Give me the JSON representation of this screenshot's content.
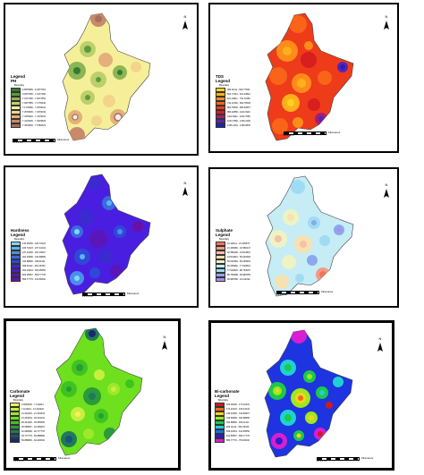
{
  "panels": [
    {
      "id": "ph",
      "title": "Legend",
      "subtitle": "PH",
      "legend_sub": "Boundary",
      "colors": {
        "base": "#f6ef9a",
        "outline": "#444444"
      },
      "rows": [
        {
          "color": "#2f7d32",
          "label": "6.8576669 - 6.9377064"
        },
        {
          "color": "#5c9b3d",
          "label": "6.9377065 - 7.0177459"
        },
        {
          "color": "#8db554",
          "label": "7.0177460 - 7.0977854"
        },
        {
          "color": "#bcd06a",
          "label": "7.0977855 - 7.1778249"
        },
        {
          "color": "#f6ef9a",
          "label": "7.1778250 - 7.2578644"
        },
        {
          "color": "#f2d48a",
          "label": "7.2578645 - 7.3379039"
        },
        {
          "color": "#e4b07a",
          "label": "7.3379040 - 7.4179434"
        },
        {
          "color": "#c98a6a",
          "label": "7.4179435 - 7.4979829"
        },
        {
          "color": "#a5705e",
          "label": "7.4979830 - 7.5780224"
        }
      ]
    },
    {
      "id": "tds",
      "title": "TDS",
      "subtitle": "Legend",
      "legend_sub": "Boundary",
      "colors": {
        "base": "#ee3b1a",
        "outline": "#444444"
      },
      "rows": [
        {
          "color": "#ffd21f",
          "label": "380.11111 - 500.77460"
        },
        {
          "color": "#ffb01c",
          "label": "500.77461 - 621.43810"
        },
        {
          "color": "#ff8c1a",
          "label": "621.43811 - 742.10159"
        },
        {
          "color": "#f96418",
          "label": "742.10160 - 862.76508"
        },
        {
          "color": "#ee3b1a",
          "label": "862.76509 - 983.42857"
        },
        {
          "color": "#d81e1e",
          "label": "983.42858 - 1104.0920"
        },
        {
          "color": "#a21e78",
          "label": "1104.0921 - 1224.7555"
        },
        {
          "color": "#5a24b0",
          "label": "1224.7556 - 1345.4190"
        },
        {
          "color": "#2020c0",
          "label": "1345.4191 - 1466.0825"
        }
      ]
    },
    {
      "id": "hardness",
      "title": "Hardness",
      "subtitle": "Legend",
      "legend_sub": "Boundary",
      "colors": {
        "base": "#4a1ee0",
        "outline": "#444444"
      },
      "rows": [
        {
          "color": "#7fd6ff",
          "label": "130.00000 - 183.72222"
        },
        {
          "color": "#5fb4f4",
          "label": "183.72223 - 237.44444"
        },
        {
          "color": "#4a8fea",
          "label": "237.44445 - 291.16667"
        },
        {
          "color": "#3a6ae0",
          "label": "291.16668 - 344.88889"
        },
        {
          "color": "#2f48d8",
          "label": "344.88890 - 398.61111"
        },
        {
          "color": "#3a2ad0",
          "label": "398.61112 - 452.33333"
        },
        {
          "color": "#4a1ec8",
          "label": "452.33334 - 506.05556"
        },
        {
          "color": "#5a16b8",
          "label": "506.05557 - 559.77778"
        },
        {
          "color": "#6a10a4",
          "label": "559.77779 - 613.50000"
        }
      ]
    },
    {
      "id": "sulphate",
      "title": "Sulphate",
      "subtitle": "Legend",
      "legend_sub": "Boundary",
      "colors": {
        "base": "#c6ecf6",
        "outline": "#444444"
      },
      "rows": [
        {
          "color": "#f2745a",
          "label": "10.111111 - 21.345679"
        },
        {
          "color": "#f49a84",
          "label": "21.345680 - 32.580247"
        },
        {
          "color": "#f7c0aa",
          "label": "32.580248 - 43.814815"
        },
        {
          "color": "#f6e2b0",
          "label": "43.814816 - 55.049383"
        },
        {
          "color": "#eef3c4",
          "label": "55.049384 - 66.283951"
        },
        {
          "color": "#c6ecf6",
          "label": "66.283952 - 77.518519"
        },
        {
          "color": "#9fdcf3",
          "label": "77.518520 - 88.753087"
        },
        {
          "color": "#8aa8ee",
          "label": "88.753088 - 99.987655"
        },
        {
          "color": "#b48ae6",
          "label": "99.987656 - 111.22222"
        }
      ]
    },
    {
      "id": "carbonate",
      "title": "Carbonate",
      "subtitle": "Legend",
      "legend_sub": "Boundary",
      "colors": {
        "base": "#6ee01e",
        "outline": "#444444"
      },
      "rows": [
        {
          "color": "#f2f25a",
          "label": "0.0000000 - 7.1111111"
        },
        {
          "color": "#c8ee40",
          "label": "7.1111112 - 14.222222"
        },
        {
          "color": "#9ee82a",
          "label": "14.222223 - 21.333333"
        },
        {
          "color": "#6ee01e",
          "label": "21.333334 - 28.444444"
        },
        {
          "color": "#3ec41e",
          "label": "28.444445 - 35.555556"
        },
        {
          "color": "#2a9a3a",
          "label": "35.555557 - 42.666667"
        },
        {
          "color": "#1f7a5a",
          "label": "42.666668 - 49.777778"
        },
        {
          "color": "#1c4f7a",
          "label": "49.777779 - 56.888889"
        },
        {
          "color": "#182a6e",
          "label": "56.888890 - 64.000000"
        }
      ]
    },
    {
      "id": "bicarbonate",
      "title": "Bi-carbonate",
      "subtitle": "Legend",
      "legend_sub": "Boundary",
      "colors": {
        "base": "#1e34e0",
        "outline": "#444444"
      },
      "rows": [
        {
          "color": "#c81e1e",
          "label": "100.00000 - 173.22222"
        },
        {
          "color": "#ee6a1e",
          "label": "173.22223 - 246.44444"
        },
        {
          "color": "#f6d21e",
          "label": "246.44445 - 319.66667"
        },
        {
          "color": "#9ee81e",
          "label": "319.66668 - 392.88889"
        },
        {
          "color": "#1ec84a",
          "label": "392.88890 - 466.11111"
        },
        {
          "color": "#1ed2d2",
          "label": "466.11112 - 539.33333"
        },
        {
          "color": "#1e6ae6",
          "label": "539.33334 - 612.55556"
        },
        {
          "color": "#2a1ec8",
          "label": "612.55557 - 685.77778"
        },
        {
          "color": "#d81ed2",
          "label": "685.77779 - 759.00000"
        }
      ]
    }
  ],
  "north": "N",
  "scale": {
    "ticks": "0  1  2     4     6     8",
    "unit": "Kilometers"
  }
}
